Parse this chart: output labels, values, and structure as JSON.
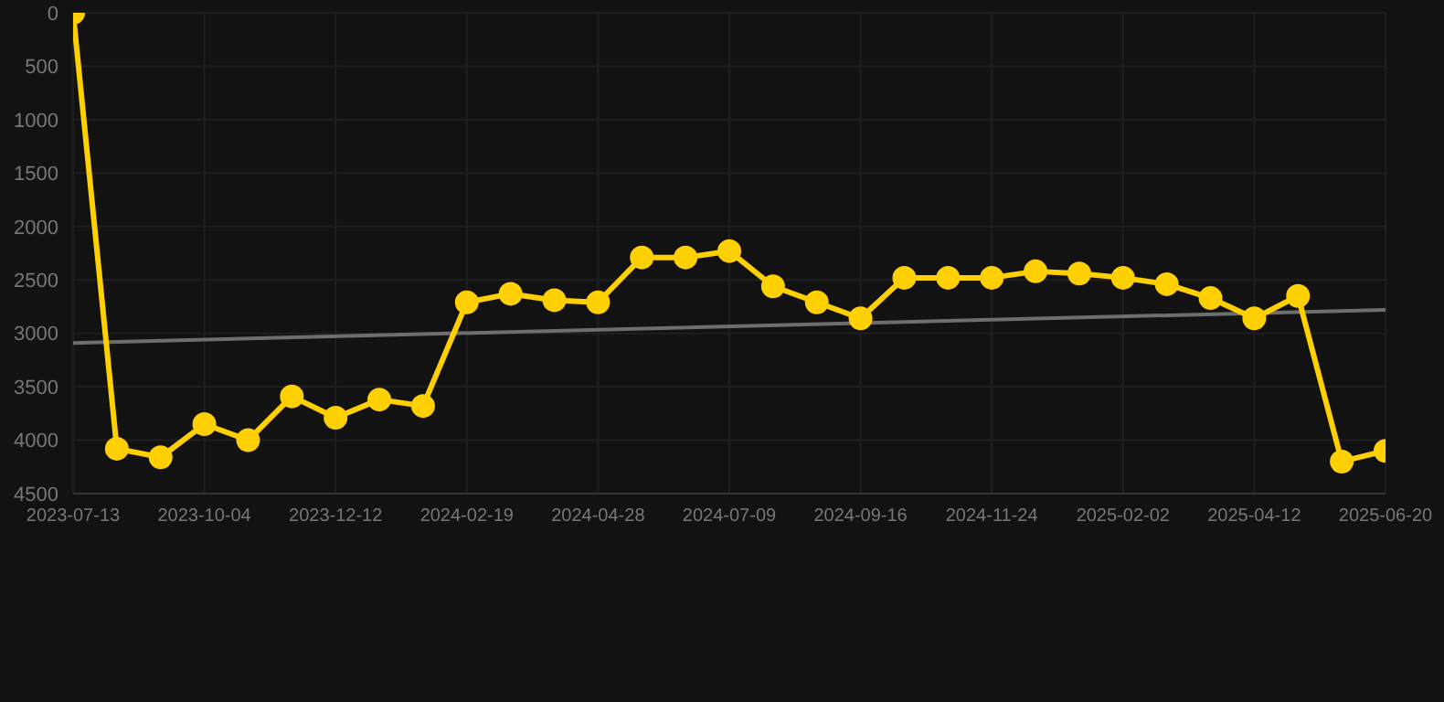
{
  "chart_data": {
    "type": "line",
    "categories": [
      "2023-07-13",
      null,
      null,
      "2023-10-04",
      null,
      null,
      "2023-12-12",
      null,
      null,
      "2024-02-19",
      null,
      null,
      "2024-04-28",
      null,
      null,
      "2024-07-09",
      null,
      null,
      "2024-09-16",
      null,
      null,
      "2024-11-24",
      null,
      null,
      "2025-02-02",
      null,
      null,
      "2025-04-12",
      null,
      null,
      "2025-06-20"
    ],
    "series": [
      {
        "color": "#ffd000",
        "marker": "circle",
        "values": [
          0,
          4080,
          4160,
          3850,
          4000,
          3590,
          3790,
          3620,
          3680,
          2710,
          2630,
          2690,
          2710,
          2290,
          2290,
          2230,
          2560,
          2710,
          2860,
          2480,
          2480,
          2480,
          2420,
          2440,
          2480,
          2540,
          2670,
          2860,
          2650,
          4200,
          4100
        ]
      },
      {
        "color": "#6e6e6e",
        "marker": "none",
        "values": [
          3090,
          null,
          null,
          null,
          null,
          null,
          null,
          null,
          null,
          null,
          null,
          null,
          null,
          null,
          null,
          null,
          null,
          null,
          null,
          null,
          null,
          null,
          null,
          null,
          null,
          null,
          null,
          null,
          null,
          null,
          2780
        ]
      }
    ],
    "ylim": [
      4500,
      0
    ],
    "yticks": [
      0,
      500,
      1000,
      1500,
      2000,
      2500,
      3000,
      3500,
      4000,
      4500
    ],
    "grid": true,
    "legend": false
  }
}
